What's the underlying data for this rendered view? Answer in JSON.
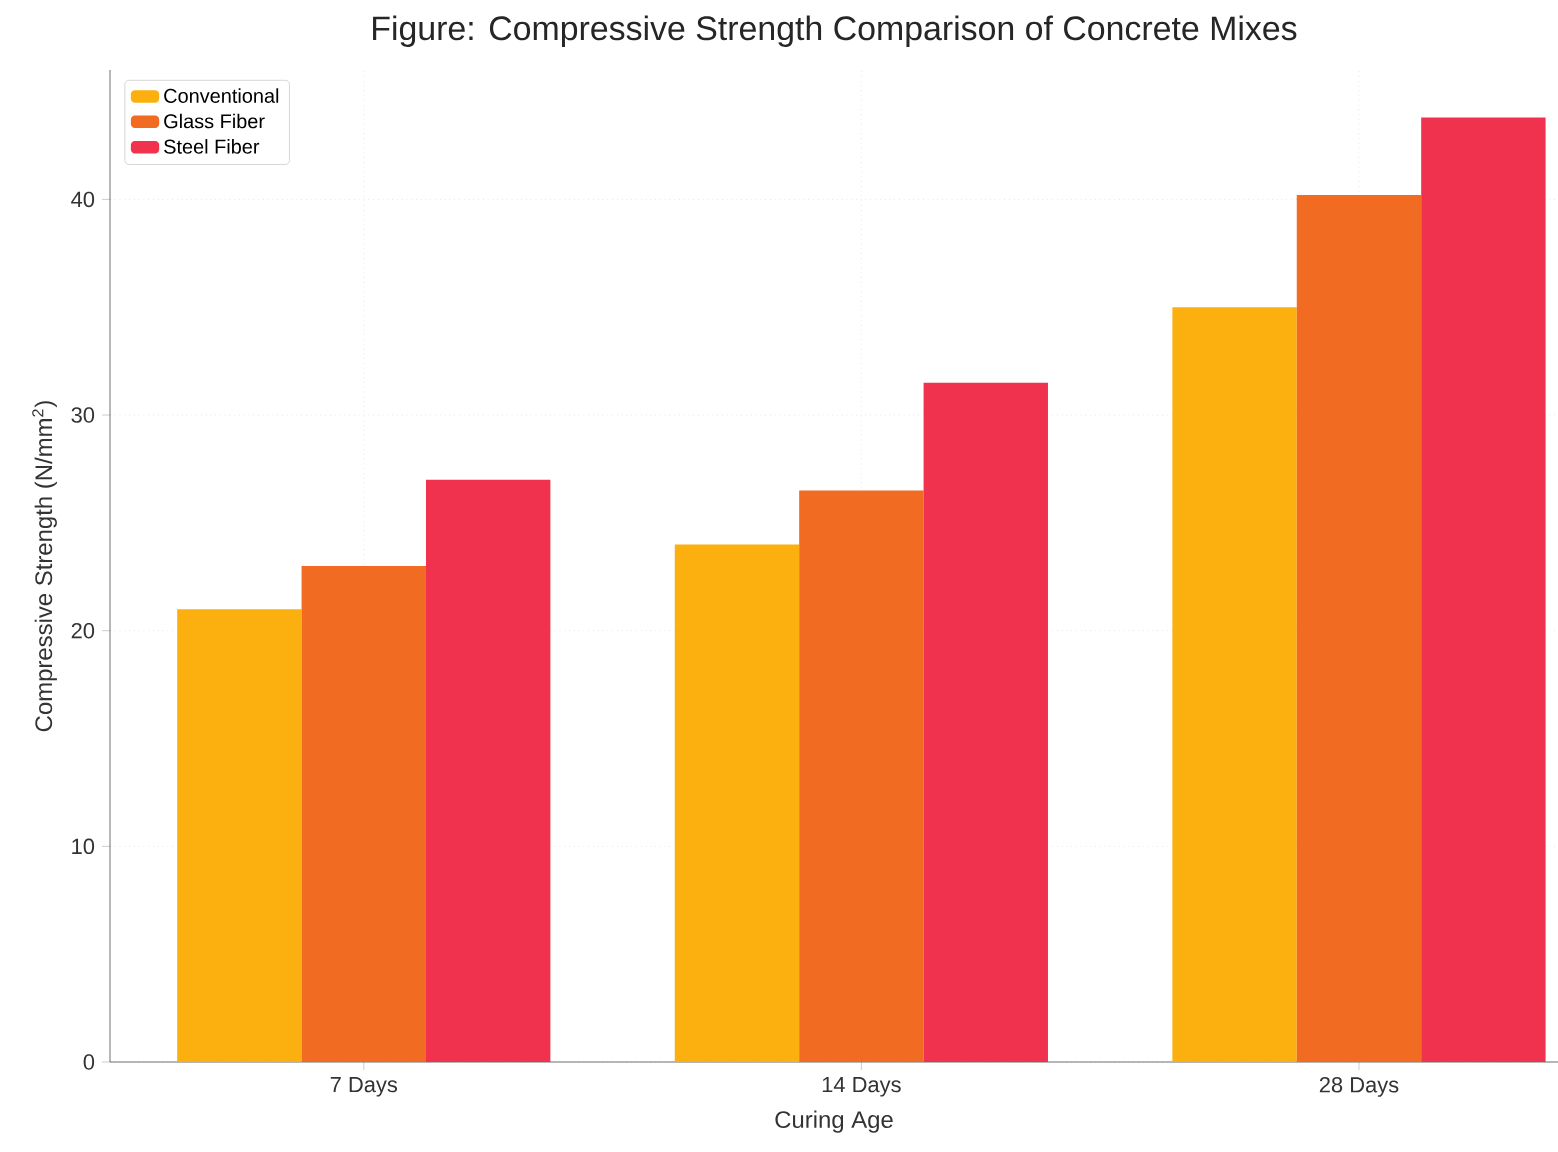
{
  "chart_data": {
    "type": "bar",
    "title": "Figure: Compressive Strength Comparison of Concrete Mixes",
    "xlabel": "Curing Age",
    "ylabel": "Compressive Strength (N/mm$^{2}$)",
    "categories": [
      "7 Days",
      "14 Days",
      "28 Days"
    ],
    "series": [
      {
        "name": "Conventional",
        "color": "#fbb010",
        "values": [
          21,
          24,
          35
        ]
      },
      {
        "name": "Glass Fiber",
        "color": "#f26b22",
        "values": [
          23,
          26.5,
          40.2
        ]
      },
      {
        "name": "Steel Fiber",
        "color": "#f0324f",
        "values": [
          27,
          31.5,
          43.8
        ]
      }
    ],
    "ylim": [
      0,
      46
    ],
    "yticks": [
      0,
      10,
      20,
      30,
      40
    ],
    "grid": true,
    "legend": "top left"
  }
}
